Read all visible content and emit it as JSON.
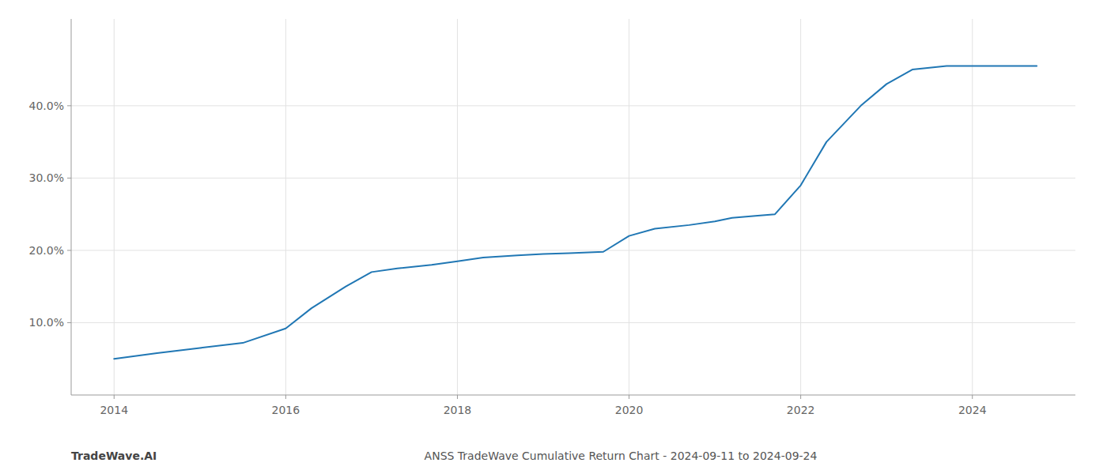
{
  "chart_data": {
    "type": "line",
    "title": "ANSS TradeWave Cumulative Return Chart - 2024-09-11 to 2024-09-24",
    "annotations": [
      "TradeWave.AI"
    ],
    "color": "#2077b4",
    "grid": true,
    "x": [
      2014.0,
      2014.5,
      2015.0,
      2015.5,
      2016.0,
      2016.3,
      2016.7,
      2017.0,
      2017.3,
      2017.7,
      2018.0,
      2018.3,
      2018.7,
      2019.0,
      2019.3,
      2019.7,
      2020.0,
      2020.3,
      2020.7,
      2021.0,
      2021.2,
      2021.5,
      2021.7,
      2022.0,
      2022.3,
      2022.7,
      2023.0,
      2023.3,
      2023.7,
      2024.0,
      2024.5,
      2024.75
    ],
    "values": [
      5.0,
      5.8,
      6.5,
      7.2,
      9.2,
      12.0,
      15.0,
      17.0,
      17.5,
      18.0,
      18.5,
      19.0,
      19.3,
      19.5,
      19.6,
      19.8,
      22.0,
      23.0,
      23.5,
      24.0,
      24.5,
      24.8,
      25.0,
      29.0,
      35.0,
      40.0,
      43.0,
      45.0,
      45.5,
      45.5,
      45.5,
      45.5
    ],
    "xlim": [
      2013.5,
      2025.2
    ],
    "ylim": [
      0,
      52
    ],
    "xticks": [
      2014,
      2016,
      2018,
      2020,
      2022,
      2024
    ],
    "yticks": [
      {
        "value": 10.0,
        "label": "10.0%"
      },
      {
        "value": 20.0,
        "label": "20.0%"
      },
      {
        "value": 30.0,
        "label": "30.0%"
      },
      {
        "value": 40.0,
        "label": "40.0%"
      }
    ]
  }
}
